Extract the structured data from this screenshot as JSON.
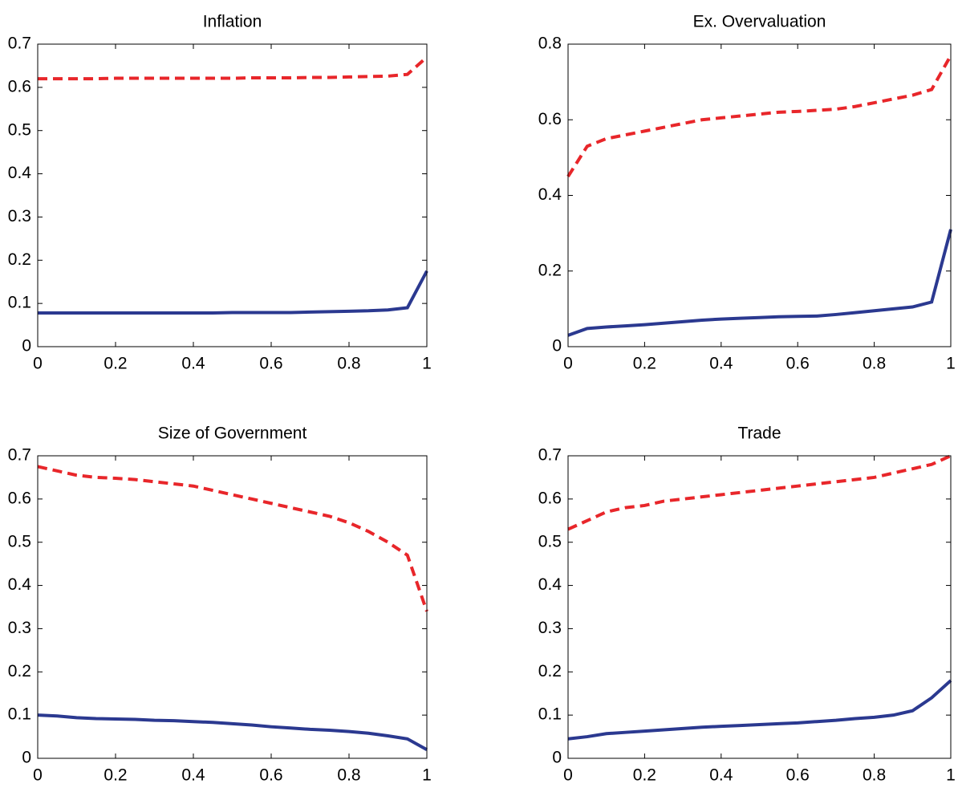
{
  "chart_data": [
    {
      "type": "line",
      "title": "Inflation",
      "x": [
        0,
        0.05,
        0.1,
        0.15,
        0.2,
        0.25,
        0.3,
        0.35,
        0.4,
        0.45,
        0.5,
        0.55,
        0.6,
        0.65,
        0.7,
        0.75,
        0.8,
        0.85,
        0.9,
        0.95,
        1
      ],
      "series": [
        {
          "color": "#e8262a",
          "line_style": "dashed",
          "values": [
            0.62,
            0.62,
            0.62,
            0.62,
            0.621,
            0.621,
            0.621,
            0.621,
            0.621,
            0.621,
            0.621,
            0.622,
            0.622,
            0.622,
            0.623,
            0.623,
            0.624,
            0.625,
            0.626,
            0.63,
            0.67
          ]
        },
        {
          "color": "#2b3990",
          "line_style": "solid",
          "values": [
            0.078,
            0.078,
            0.078,
            0.078,
            0.078,
            0.078,
            0.078,
            0.078,
            0.078,
            0.078,
            0.079,
            0.079,
            0.079,
            0.079,
            0.08,
            0.081,
            0.082,
            0.083,
            0.085,
            0.09,
            0.175
          ]
        }
      ],
      "xlim": [
        0,
        1
      ],
      "xticks": [
        0,
        0.2,
        0.4,
        0.6,
        0.8,
        1
      ],
      "ylim": [
        0,
        0.7
      ],
      "yticks": [
        0,
        0.1,
        0.2,
        0.3,
        0.4,
        0.5,
        0.6,
        0.7
      ]
    },
    {
      "type": "line",
      "title": "Ex. Overvaluation",
      "x": [
        0,
        0.05,
        0.1,
        0.15,
        0.2,
        0.25,
        0.3,
        0.35,
        0.4,
        0.45,
        0.5,
        0.55,
        0.6,
        0.65,
        0.7,
        0.75,
        0.8,
        0.85,
        0.9,
        0.95,
        1
      ],
      "series": [
        {
          "color": "#e8262a",
          "line_style": "dashed",
          "values": [
            0.45,
            0.53,
            0.55,
            0.56,
            0.57,
            0.58,
            0.59,
            0.6,
            0.605,
            0.61,
            0.615,
            0.62,
            0.622,
            0.625,
            0.628,
            0.635,
            0.645,
            0.655,
            0.665,
            0.68,
            0.77
          ]
        },
        {
          "color": "#2b3990",
          "line_style": "solid",
          "values": [
            0.03,
            0.048,
            0.052,
            0.055,
            0.058,
            0.062,
            0.066,
            0.07,
            0.073,
            0.075,
            0.077,
            0.079,
            0.08,
            0.081,
            0.085,
            0.09,
            0.095,
            0.1,
            0.105,
            0.118,
            0.31
          ]
        }
      ],
      "xlim": [
        0,
        1
      ],
      "xticks": [
        0,
        0.2,
        0.4,
        0.6,
        0.8,
        1
      ],
      "ylim": [
        0,
        0.8
      ],
      "yticks": [
        0,
        0.2,
        0.4,
        0.6,
        0.8
      ]
    },
    {
      "type": "line",
      "title": "Size of Government",
      "x": [
        0,
        0.05,
        0.1,
        0.15,
        0.2,
        0.25,
        0.3,
        0.35,
        0.4,
        0.45,
        0.5,
        0.55,
        0.6,
        0.65,
        0.7,
        0.75,
        0.8,
        0.85,
        0.9,
        0.95,
        1
      ],
      "series": [
        {
          "color": "#e8262a",
          "line_style": "dashed",
          "values": [
            0.675,
            0.665,
            0.655,
            0.65,
            0.648,
            0.645,
            0.64,
            0.635,
            0.63,
            0.62,
            0.61,
            0.6,
            0.59,
            0.58,
            0.57,
            0.56,
            0.545,
            0.525,
            0.5,
            0.47,
            0.34
          ]
        },
        {
          "color": "#2b3990",
          "line_style": "solid",
          "values": [
            0.1,
            0.098,
            0.094,
            0.092,
            0.091,
            0.09,
            0.088,
            0.087,
            0.085,
            0.083,
            0.08,
            0.077,
            0.073,
            0.07,
            0.067,
            0.065,
            0.062,
            0.058,
            0.052,
            0.045,
            0.02
          ]
        }
      ],
      "xlim": [
        0,
        1
      ],
      "xticks": [
        0,
        0.2,
        0.4,
        0.6,
        0.8,
        1
      ],
      "ylim": [
        0,
        0.7
      ],
      "yticks": [
        0,
        0.1,
        0.2,
        0.3,
        0.4,
        0.5,
        0.6,
        0.7
      ]
    },
    {
      "type": "line",
      "title": "Trade",
      "x": [
        0,
        0.05,
        0.1,
        0.15,
        0.2,
        0.25,
        0.3,
        0.35,
        0.4,
        0.45,
        0.5,
        0.55,
        0.6,
        0.65,
        0.7,
        0.75,
        0.8,
        0.85,
        0.9,
        0.95,
        1
      ],
      "series": [
        {
          "color": "#e8262a",
          "line_style": "dashed",
          "values": [
            0.53,
            0.55,
            0.57,
            0.58,
            0.585,
            0.595,
            0.6,
            0.605,
            0.61,
            0.615,
            0.62,
            0.625,
            0.63,
            0.635,
            0.64,
            0.645,
            0.65,
            0.66,
            0.67,
            0.68,
            0.7
          ]
        },
        {
          "color": "#2b3990",
          "line_style": "solid",
          "values": [
            0.045,
            0.05,
            0.057,
            0.06,
            0.063,
            0.066,
            0.069,
            0.072,
            0.074,
            0.076,
            0.078,
            0.08,
            0.082,
            0.085,
            0.088,
            0.092,
            0.095,
            0.1,
            0.11,
            0.14,
            0.18
          ]
        }
      ],
      "xlim": [
        0,
        1
      ],
      "xticks": [
        0,
        0.2,
        0.4,
        0.6,
        0.8,
        1
      ],
      "ylim": [
        0,
        0.7
      ],
      "yticks": [
        0,
        0.1,
        0.2,
        0.3,
        0.4,
        0.5,
        0.6,
        0.7
      ]
    }
  ]
}
